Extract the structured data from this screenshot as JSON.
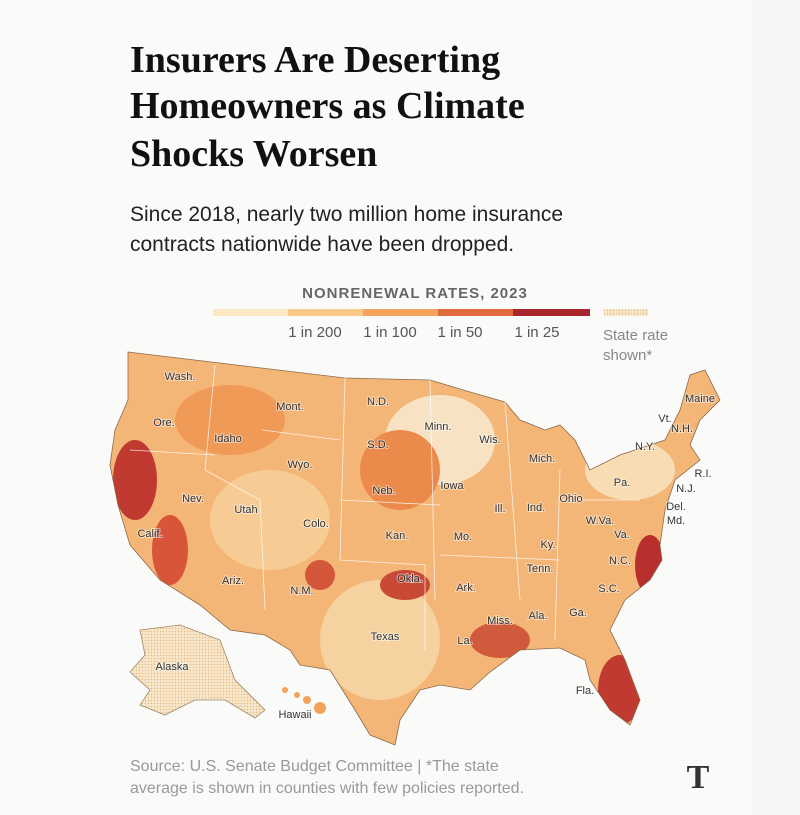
{
  "header": {
    "title_lines": [
      "Insurers Are Deserting",
      "Homeowners as Climate",
      "Shocks Worsen"
    ],
    "subtitle_lines": [
      "Since 2018, nearly two million home insurance",
      "contracts nationwide have been dropped."
    ]
  },
  "legend": {
    "title": "NONRENEWAL RATES, 2023",
    "labels": [
      "1 in 200",
      "1 in 100",
      "1 in 50",
      "1 in 25"
    ],
    "state_rate": [
      "State rate",
      "shown*"
    ]
  },
  "map": {
    "labels": [
      "Wash.",
      "Mont.",
      "N.D.",
      "Minn.",
      "Ore.",
      "Idaho",
      "S.D.",
      "Wis.",
      "Mich.",
      "Wyo.",
      "Neb.",
      "Iowa",
      "Nev.",
      "Utah",
      "Colo.",
      "Ill.",
      "Ind.",
      "Ohio",
      "Kan.",
      "Mo.",
      "Calif.",
      "Ky.",
      "W.Va.",
      "Va.",
      "Tenn.",
      "N.C.",
      "Ariz.",
      "N.M.",
      "Okla.",
      "Ark.",
      "S.C.",
      "Miss.",
      "Ala.",
      "Ga.",
      "Texas",
      "La.",
      "Fla.",
      "Alaska",
      "Hawaii",
      "Maine",
      "Vt.",
      "N.H.",
      "N.Y.",
      "Pa.",
      "R.I.",
      "N.J.",
      "Del.",
      "Md."
    ]
  },
  "footer": {
    "source_lines": [
      "Source: U.S. Senate Budget Committee | *The state",
      "average is shown in counties with few policies reported."
    ],
    "logo": "T"
  }
}
